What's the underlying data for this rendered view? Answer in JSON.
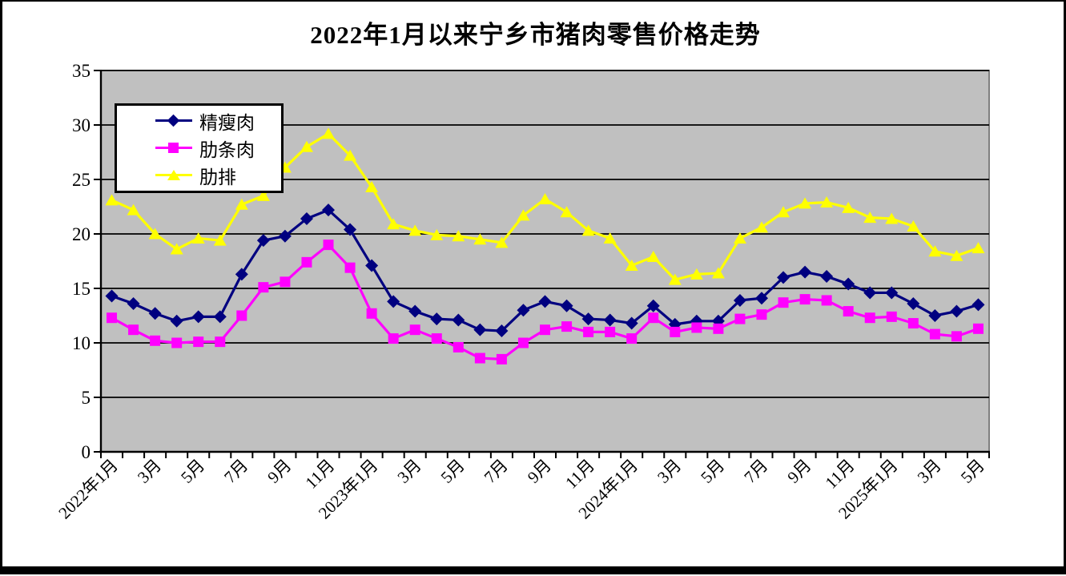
{
  "window": {
    "background": "#ffffff",
    "border_color": "#000000"
  },
  "chart_data": {
    "type": "line",
    "title": "2022年1月以来宁乡市猪肉零售价格走势",
    "xlabel": "",
    "ylabel": "",
    "ylim": [
      0,
      35
    ],
    "ytick_step": 5,
    "y_tick_labels": [
      "0",
      "5",
      "10",
      "15",
      "20",
      "25",
      "30",
      "35"
    ],
    "grid": true,
    "plot_background": "#c0c0c0",
    "gridline_color": "#000000",
    "plot_border_color": "#808080",
    "legend_position": "top-left-inside",
    "label_every": 2,
    "categories": [
      "2022年1月",
      "2022年2月",
      "2022年3月",
      "2022年4月",
      "2022年5月",
      "2022年6月",
      "2022年7月",
      "2022年8月",
      "2022年9月",
      "2022年10月",
      "2022年11月",
      "2022年12月",
      "2023年1月",
      "2023年2月",
      "2023年3月",
      "2023年4月",
      "2023年5月",
      "2023年6月",
      "2023年7月",
      "2023年8月",
      "2023年9月",
      "2023年10月",
      "2023年11月",
      "2023年12月",
      "2024年1月",
      "2024年2月",
      "2024年3月",
      "2024年4月",
      "2024年5月",
      "2024年6月",
      "2024年7月",
      "2024年8月",
      "2024年9月",
      "2024年10月",
      "2024年11月",
      "2024年12月",
      "2025年1月",
      "2025年2月",
      "2025年3月",
      "2025年4月",
      "2025年5月"
    ],
    "x_tick_labels": [
      "2022年1月",
      "3月",
      "5月",
      "7月",
      "9月",
      "11月",
      "2023年1月",
      "3月",
      "5月",
      "7月",
      "9月",
      "11月",
      "2024年1月",
      "3月",
      "5月",
      "7月",
      "9月",
      "11月",
      "2025年1月",
      "3月",
      "5月"
    ],
    "series": [
      {
        "name": "精瘦肉",
        "color": "#000080",
        "marker": "diamond",
        "values": [
          14.3,
          13.6,
          12.7,
          12.0,
          12.4,
          12.4,
          16.3,
          19.4,
          19.8,
          21.4,
          22.2,
          20.4,
          17.1,
          13.8,
          12.9,
          12.2,
          12.1,
          11.2,
          11.1,
          13.0,
          13.8,
          13.4,
          12.2,
          12.1,
          11.8,
          13.4,
          11.7,
          12.0,
          12.0,
          13.9,
          14.1,
          16.0,
          16.5,
          16.1,
          15.4,
          14.6,
          14.6,
          13.6,
          12.5,
          12.9,
          13.5
        ]
      },
      {
        "name": "肋条肉",
        "color": "#ff00ff",
        "marker": "square",
        "values": [
          12.3,
          11.2,
          10.2,
          10.0,
          10.1,
          10.1,
          12.5,
          15.1,
          15.6,
          17.4,
          19.0,
          16.9,
          12.7,
          10.4,
          11.2,
          10.4,
          9.6,
          8.6,
          8.5,
          10.0,
          11.2,
          11.5,
          11.0,
          11.0,
          10.4,
          12.3,
          11.0,
          11.4,
          11.3,
          12.2,
          12.6,
          13.7,
          14.0,
          13.9,
          12.9,
          12.3,
          12.4,
          11.8,
          10.8,
          10.6,
          11.3
        ]
      },
      {
        "name": "肋排",
        "color": "#ffff00",
        "marker": "triangle",
        "values": [
          23.1,
          22.2,
          20.0,
          18.6,
          19.6,
          19.4,
          22.7,
          23.5,
          26.1,
          28.0,
          29.2,
          27.2,
          24.3,
          20.9,
          20.3,
          19.9,
          19.8,
          19.5,
          19.2,
          21.7,
          23.2,
          22.0,
          20.3,
          19.6,
          17.1,
          17.9,
          15.8,
          16.3,
          16.4,
          19.6,
          20.6,
          22.0,
          22.8,
          22.9,
          22.4,
          21.5,
          21.4,
          20.7,
          18.4,
          18.0,
          18.7
        ]
      }
    ]
  }
}
